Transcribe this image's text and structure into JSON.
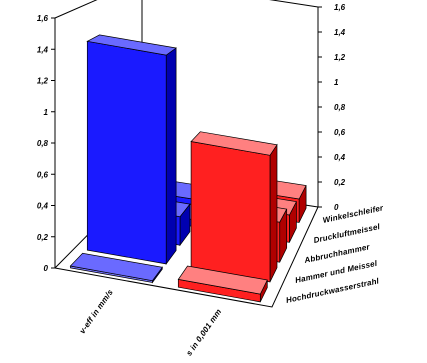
{
  "chart_data": {
    "type": "bar",
    "variant": "3d-column",
    "x": [
      "v-eff in mm/s",
      "s in 0,001 mm"
    ],
    "categories": [
      "Winkelschleifer",
      "Druckluftmeissel",
      "Abbruchhammer",
      "Hammer und Meissel",
      "Hochdruckwasserstrahl"
    ],
    "series": [
      {
        "name": "v-eff in mm/s",
        "values": [
          0.05,
          0.05,
          0.2,
          1.4,
          0.0
        ]
      },
      {
        "name": "s in 0,001 mm",
        "values": [
          0.18,
          0.2,
          0.28,
          0.85,
          0.05
        ]
      }
    ],
    "left_ticks": [
      "0",
      "0,2",
      "0,4",
      "0,6",
      "0,8",
      "1",
      "1,2",
      "1,4",
      "1,6"
    ],
    "right_ticks": [
      "0",
      "0,2",
      "0,4",
      "0,6",
      "0,8",
      "1",
      "1,2",
      "1,4",
      "1,6"
    ],
    "ylim": [
      0,
      1.6
    ],
    "grid": false,
    "colors": {
      "series_1_front": "#1a1aff",
      "series_1_side": "#0000b0",
      "series_1_top": "#6a6aff",
      "series_2_front": "#ff2020",
      "series_2_side": "#b00000",
      "series_2_top": "#ff8080",
      "zero_front_1": "#7878ff",
      "zero_front_2": "#ff9090",
      "wall": "#000000"
    }
  }
}
